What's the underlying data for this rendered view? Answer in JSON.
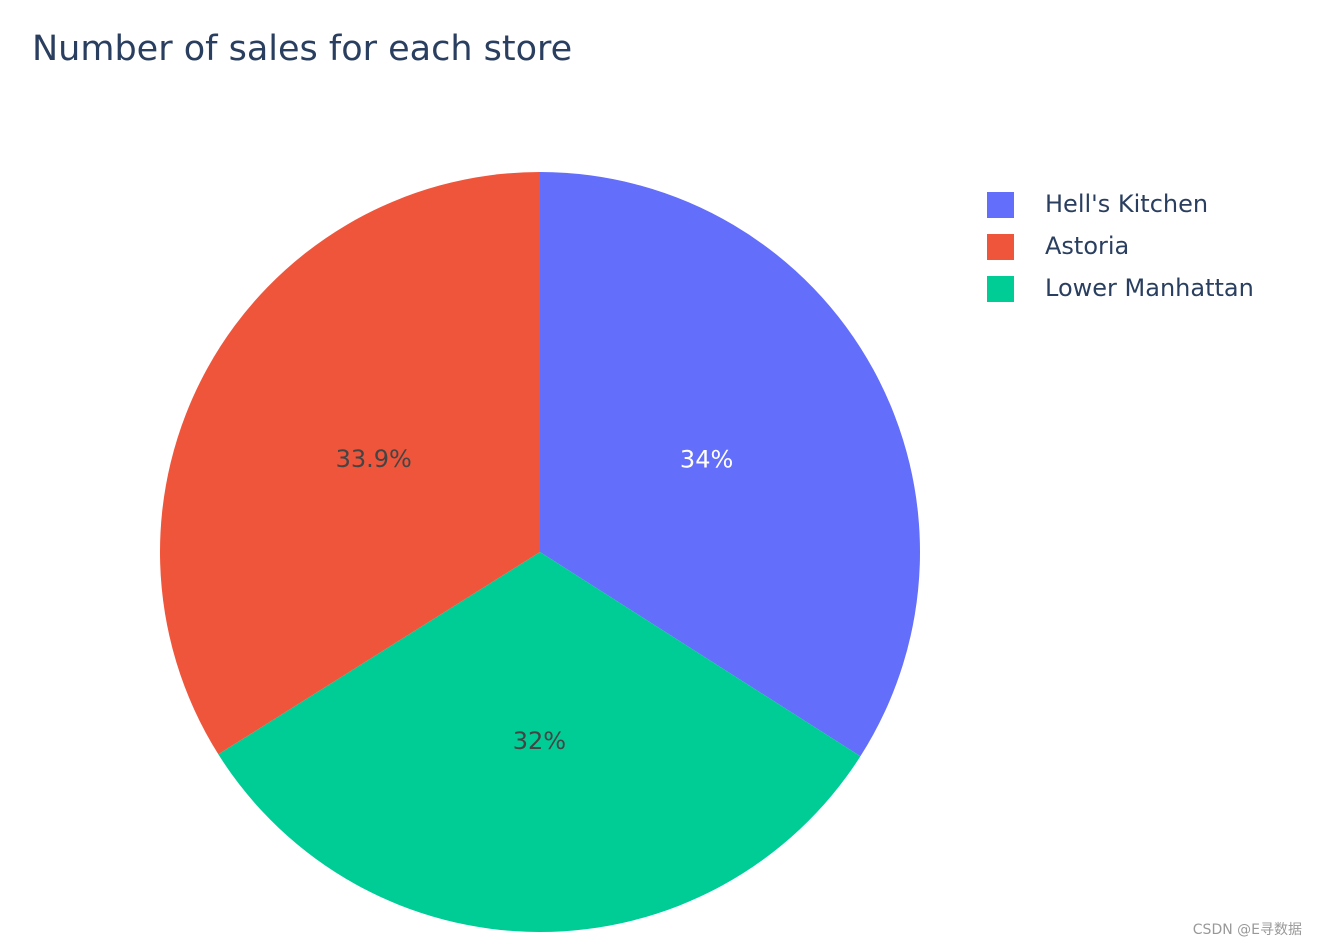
{
  "chart_data": {
    "type": "pie",
    "title": "Number of sales for each store",
    "categories": [
      "Hell's Kitchen",
      "Astoria",
      "Lower Manhattan"
    ],
    "values": [
      34,
      33.9,
      32
    ],
    "value_labels": [
      "34%",
      "33.9%",
      "32%"
    ],
    "colors": [
      "#636efa",
      "#ef553b",
      "#00cc96"
    ],
    "legend": "top-right",
    "watermark": "CSDN @E寻数据"
  }
}
